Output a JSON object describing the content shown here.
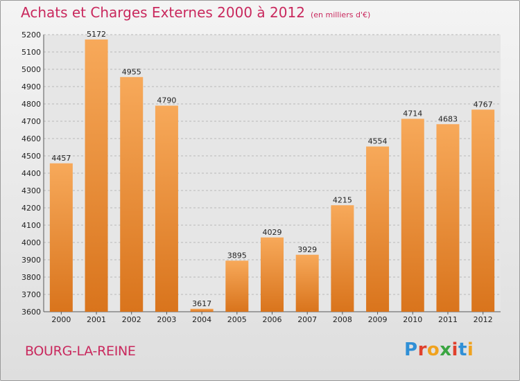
{
  "header": {
    "title": "Achats et Charges Externes 2000 à 2012",
    "unit": "(en milliers d'€)"
  },
  "footer": {
    "city": "BOURG-LA-REINE",
    "logo_letters": [
      "P",
      "r",
      "o",
      "x",
      "i",
      "t",
      "i"
    ],
    "logo_colors": [
      "#2f8fd6",
      "#e0402c",
      "#f0a21e",
      "#3aa541",
      "#e0402c",
      "#2f8fd6",
      "#f0a21e"
    ]
  },
  "colors": {
    "bar_top": "#f7a95a",
    "bar_bottom": "#d9741c",
    "grid": "#b8b8b8",
    "title": "#c9285d"
  },
  "chart_data": {
    "type": "bar",
    "title": "Achats et Charges Externes 2000 à 2012",
    "subtitle": "(en milliers d'€)",
    "xlabel": "",
    "ylabel": "",
    "categories": [
      "2000",
      "2001",
      "2002",
      "2003",
      "2004",
      "2005",
      "2006",
      "2007",
      "2008",
      "2009",
      "2010",
      "2011",
      "2012"
    ],
    "values": [
      4457,
      5172,
      4955,
      4790,
      3617,
      3895,
      4029,
      3929,
      4215,
      4554,
      4714,
      4683,
      4767
    ],
    "ylim": [
      3600,
      5200
    ],
    "yticks": [
      3600,
      3700,
      3800,
      3900,
      4000,
      4100,
      4200,
      4300,
      4400,
      4500,
      4600,
      4700,
      4800,
      4900,
      5000,
      5100,
      5200
    ],
    "grid": true
  }
}
